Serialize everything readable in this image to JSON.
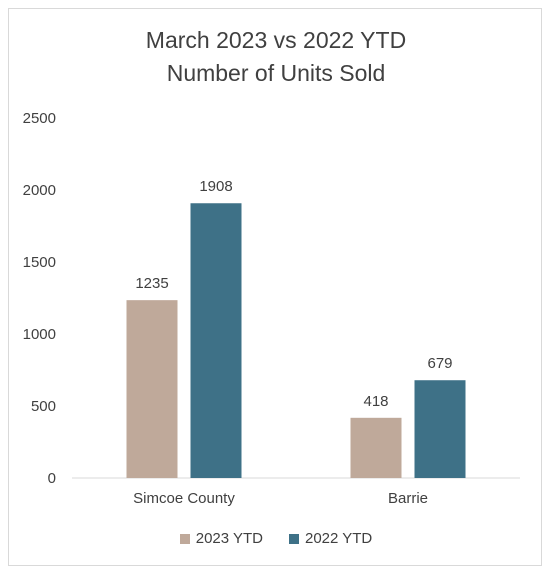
{
  "chart_data": {
    "type": "bar",
    "title_lines": [
      "March 2023 vs 2022 YTD",
      "Number of Units Sold"
    ],
    "categories": [
      "Simcoe County",
      "Barrie"
    ],
    "series": [
      {
        "name": "2023 YTD",
        "values": [
          1235,
          418
        ],
        "color": "#bfa99a"
      },
      {
        "name": "2022 YTD",
        "values": [
          1908,
          679
        ],
        "color": "#3e7187"
      }
    ],
    "ylim": [
      0,
      2500
    ],
    "yticks": [
      0,
      500,
      1000,
      1500,
      2000,
      2500
    ],
    "grid": false,
    "legend_position": "bottom"
  }
}
